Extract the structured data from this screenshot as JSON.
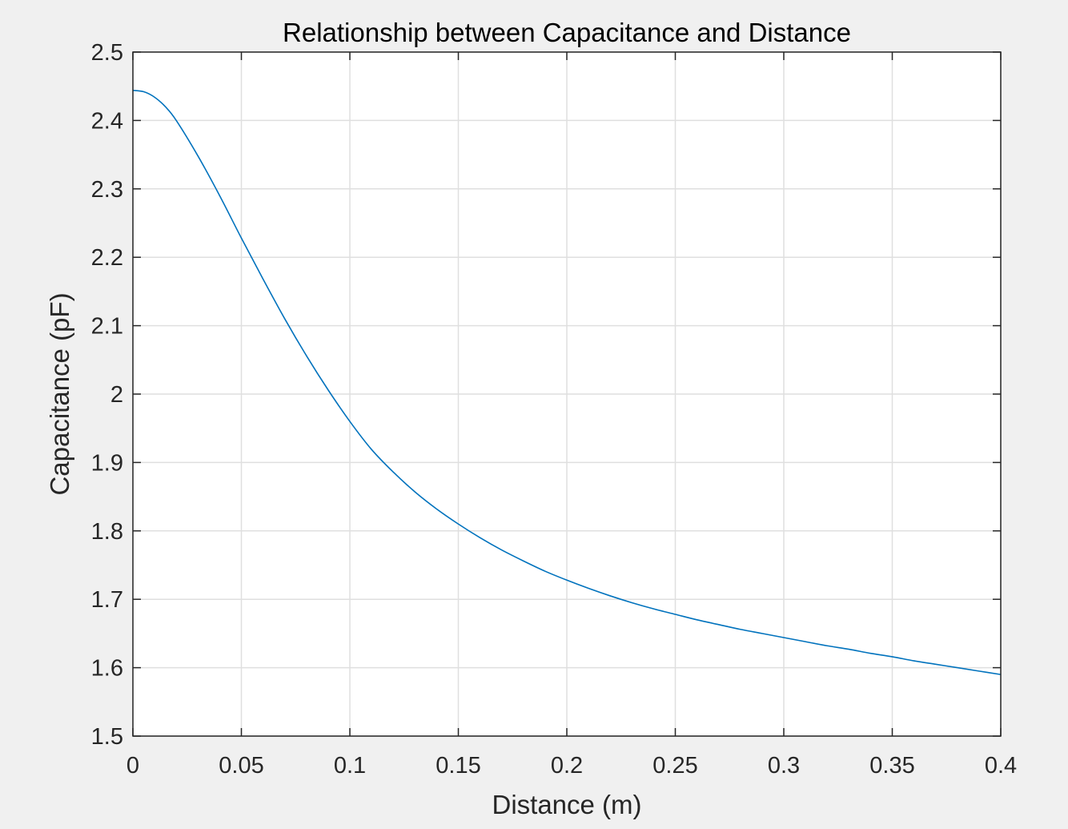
{
  "chart_data": {
    "type": "line",
    "title": "Relationship between Capacitance and Distance",
    "xlabel": "Distance (m)",
    "ylabel": "Capacitance (pF)",
    "xlim": [
      0,
      0.4
    ],
    "ylim": [
      1.5,
      2.5
    ],
    "grid": true,
    "x_ticks": [
      {
        "value": 0,
        "label": "0"
      },
      {
        "value": 0.05,
        "label": "0.05"
      },
      {
        "value": 0.1,
        "label": "0.1"
      },
      {
        "value": 0.15,
        "label": "0.15"
      },
      {
        "value": 0.2,
        "label": "0.2"
      },
      {
        "value": 0.25,
        "label": "0.25"
      },
      {
        "value": 0.3,
        "label": "0.3"
      },
      {
        "value": 0.35,
        "label": "0.35"
      },
      {
        "value": 0.4,
        "label": "0.4"
      }
    ],
    "y_ticks": [
      {
        "value": 1.5,
        "label": "1.5"
      },
      {
        "value": 1.6,
        "label": "1.6"
      },
      {
        "value": 1.7,
        "label": "1.7"
      },
      {
        "value": 1.8,
        "label": "1.8"
      },
      {
        "value": 1.9,
        "label": "1.9"
      },
      {
        "value": 2.0,
        "label": "2"
      },
      {
        "value": 2.1,
        "label": "2.1"
      },
      {
        "value": 2.2,
        "label": "2.2"
      },
      {
        "value": 2.3,
        "label": "2.3"
      },
      {
        "value": 2.4,
        "label": "2.4"
      },
      {
        "value": 2.5,
        "label": "2.5"
      }
    ],
    "series": [
      {
        "name": "Capacitance",
        "color": "#0072bd",
        "x": [
          0,
          0.005,
          0.01,
          0.015,
          0.02,
          0.03,
          0.04,
          0.05,
          0.06,
          0.07,
          0.08,
          0.09,
          0.1,
          0.11,
          0.12,
          0.13,
          0.14,
          0.15,
          0.16,
          0.17,
          0.18,
          0.19,
          0.2,
          0.21,
          0.22,
          0.23,
          0.24,
          0.25,
          0.26,
          0.27,
          0.28,
          0.29,
          0.3,
          0.31,
          0.32,
          0.33,
          0.34,
          0.35,
          0.36,
          0.37,
          0.38,
          0.39,
          0.4
        ],
        "y": [
          2.444,
          2.442,
          2.434,
          2.42,
          2.4,
          2.348,
          2.29,
          2.228,
          2.168,
          2.11,
          2.056,
          2.006,
          1.96,
          1.919,
          1.886,
          1.857,
          1.832,
          1.81,
          1.79,
          1.772,
          1.756,
          1.741,
          1.728,
          1.716,
          1.705,
          1.695,
          1.686,
          1.678,
          1.67,
          1.663,
          1.656,
          1.65,
          1.644,
          1.638,
          1.632,
          1.627,
          1.621,
          1.616,
          1.61,
          1.605,
          1.6,
          1.595,
          1.59
        ]
      }
    ]
  }
}
